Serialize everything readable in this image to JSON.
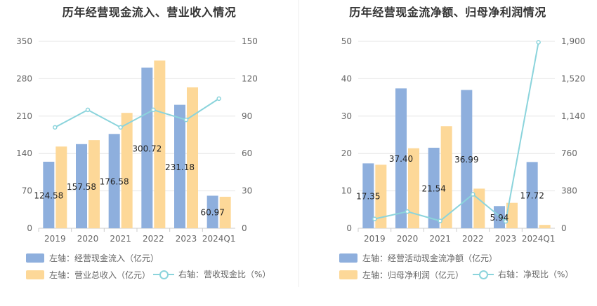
{
  "colors": {
    "bar_primary": "#8eafdd",
    "bar_secondary": "#fdd898",
    "line": "#8bd4dc",
    "grid": "#e6e6e6",
    "axis_text": "#666666"
  },
  "chart_data": [
    {
      "type": "bar",
      "title": "历年经营现金流入、营业收入情况",
      "categories": [
        "2019",
        "2020",
        "2021",
        "2022",
        "2023",
        "2024Q1"
      ],
      "left_axis": {
        "ticks": [
          "0",
          "70",
          "140",
          "210",
          "280",
          "350"
        ],
        "ylim": [
          0,
          350
        ]
      },
      "right_axis": {
        "ticks": [
          "0",
          "30",
          "60",
          "90",
          "120",
          "150"
        ],
        "ylim": [
          0,
          150
        ]
      },
      "series": [
        {
          "name": "左轴：经营现金流入（亿元）",
          "kind": "bar",
          "axis": "left",
          "values": [
            124.58,
            157.58,
            176.58,
            300.72,
            231.18,
            60.97
          ],
          "labels": [
            "124.58",
            "157.58",
            "176.58",
            "300.72",
            "231.18",
            "60.97"
          ]
        },
        {
          "name": "左轴：营业总收入（亿元）",
          "kind": "bar",
          "axis": "left",
          "values": [
            153,
            165,
            216,
            314,
            264,
            59
          ]
        },
        {
          "name": "右轴：营收现金比（%）",
          "kind": "line",
          "axis": "right",
          "values": [
            81,
            95,
            81,
            95,
            87,
            104
          ]
        }
      ]
    },
    {
      "type": "bar",
      "title": "历年经营现金流净额、归母净利润情况",
      "categories": [
        "2019",
        "2020",
        "2021",
        "2022",
        "2023",
        "2024Q1"
      ],
      "left_axis": {
        "ticks": [
          "0",
          "10",
          "20",
          "30",
          "40",
          "50"
        ],
        "ylim": [
          0,
          50
        ]
      },
      "right_axis": {
        "ticks": [
          "0",
          "380",
          "760",
          "1,140",
          "1,520",
          "1,900"
        ],
        "ylim": [
          0,
          1900
        ]
      },
      "series": [
        {
          "name": "左轴：经营活动现金流净额（亿元）",
          "kind": "bar",
          "axis": "left",
          "values": [
            17.35,
            37.4,
            21.54,
            36.99,
            5.94,
            17.72
          ],
          "labels": [
            "17.35",
            "37.40",
            "21.54",
            "36.99",
            "5.94",
            "17.72"
          ]
        },
        {
          "name": "左轴：归母净利润（亿元）",
          "kind": "bar",
          "axis": "left",
          "values": [
            17.0,
            21.4,
            27.3,
            10.6,
            6.8,
            0.9
          ]
        },
        {
          "name": "右轴：净现比（%）",
          "kind": "line",
          "axis": "right",
          "values": [
            95,
            170,
            75,
            345,
            70,
            1890
          ]
        }
      ]
    }
  ]
}
